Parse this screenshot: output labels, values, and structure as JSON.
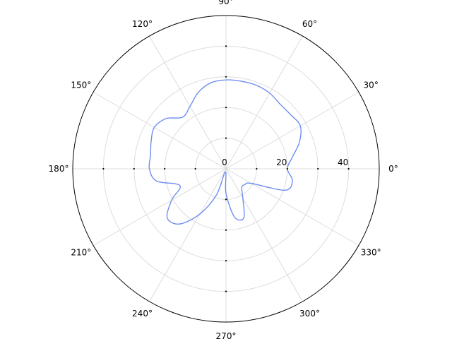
{
  "chart_data": {
    "type": "line",
    "coordinate_system": "polar",
    "title": "",
    "angle_ticks": [
      "0°",
      "30°",
      "60°",
      "90°",
      "120°",
      "150°",
      "180°",
      "210°",
      "240°",
      "270°",
      "300°",
      "330°"
    ],
    "radial_tick_labels": [
      "0",
      "20",
      "40"
    ],
    "rlim": [
      0,
      50
    ],
    "grid": true,
    "series": [
      {
        "color": "#6e8ef0",
        "theta_deg": [
          0,
          10,
          20,
          30,
          40,
          50,
          60,
          70,
          80,
          90,
          100,
          110,
          120,
          130,
          140,
          150,
          160,
          170,
          180,
          190,
          200,
          210,
          220,
          230,
          240,
          250,
          260,
          270,
          280,
          290,
          300,
          310,
          320,
          330,
          340,
          350,
          360
        ],
        "r": [
          20,
          22,
          25.5,
          28,
          27.5,
          27.5,
          28.5,
          29,
          29,
          29,
          28.5,
          26.5,
          23.5,
          22,
          25.5,
          27,
          26,
          25,
          25,
          23,
          16,
          20.5,
          25,
          23.5,
          17,
          9,
          1,
          8,
          16,
          17,
          11,
          8,
          8,
          9.5,
          20.5,
          22,
          20
        ]
      }
    ]
  }
}
